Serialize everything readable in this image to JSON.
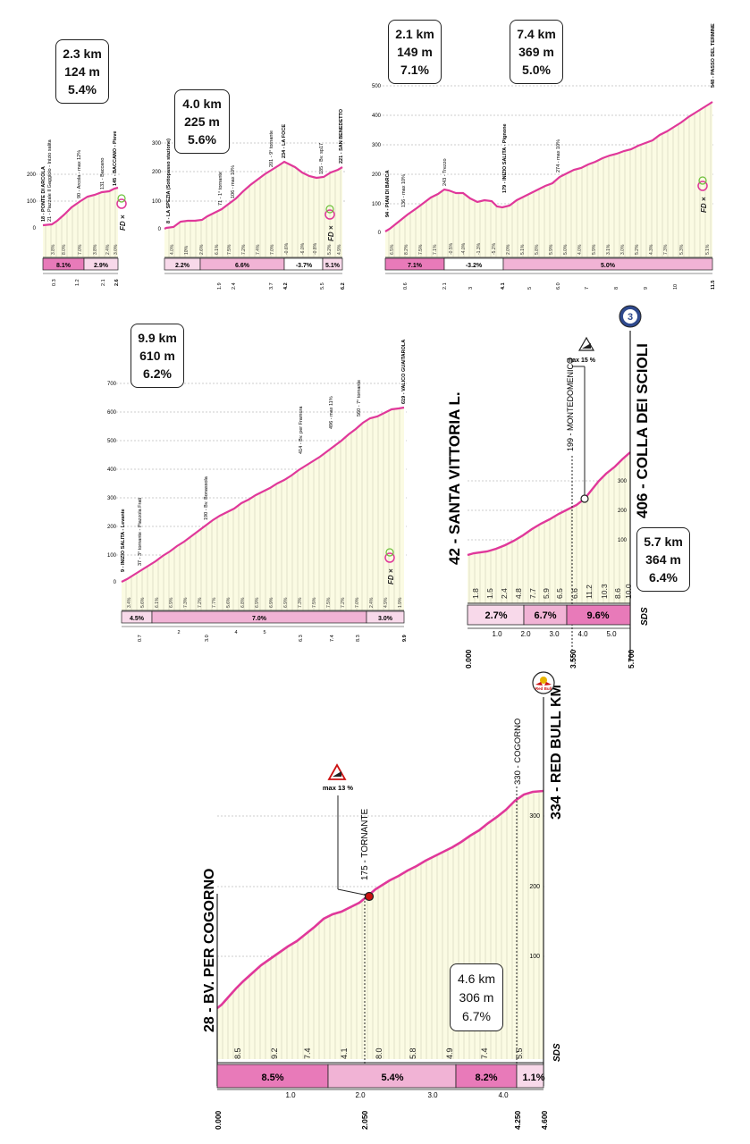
{
  "colors": {
    "line": "#e0389a",
    "fill": "#fbfbe3",
    "bar1": "#f8d9ea",
    "bar2": "#f1b3d5",
    "bar3": "#e87ab9",
    "red": "#cc1111"
  },
  "p1": {
    "summary": {
      "km": "2.3 km",
      "m": "124 m",
      "pct": "5.4%"
    },
    "yticks": [
      "100",
      "200"
    ],
    "yzero": "0",
    "xticks": [
      "0.3",
      "1.2",
      "2.1",
      "2.6"
    ],
    "landmarks": [
      "18 - PONTE DI ARCOLA",
      "21 - Piazzale Il Gaggiolo - Inizio salita",
      "90 - Arcola - max 12%",
      "131 - Baccano",
      "145 - BACCANO - Pieve"
    ],
    "seg_grades": [
      "3.8%",
      "8.0%",
      "7.0%",
      "3.8%",
      "2.4%",
      "3.0%"
    ],
    "band_labels": [
      "8.1%",
      "2.9%"
    ]
  },
  "p2": {
    "summary": {
      "km": "4.0 km",
      "m": "225 m",
      "pct": "5.6%"
    },
    "yticks": [
      "100",
      "200",
      "300"
    ],
    "yzero": "0",
    "xticks": [
      "1.9",
      "2.4",
      "3.7",
      "4.2",
      "5.5",
      "6.2"
    ],
    "landmarks": [
      "8 - LA SPEZIA (Sottopasso stazione)",
      "71 - 1° tornante",
      "106 - max 10%",
      "201 - 9° tornante",
      "234 - LA FOCE",
      "185 - Bv. sp17",
      "221 - SAN BENEDETTO"
    ],
    "seg_grades": [
      "4.0%",
      "10%",
      "2.6%",
      "6.1%",
      "7.5%",
      "7.2%",
      "7.4%",
      "7.0%",
      "-0.6%",
      "-6.0%",
      "-0.8%",
      "5.2%",
      "4.9%"
    ],
    "band_labels": [
      "2.2%",
      "6.6%",
      "-3.7%",
      "5.1%"
    ]
  },
  "p3": {
    "summary1": {
      "km": "2.1 km",
      "m": "149 m",
      "pct": "7.1%"
    },
    "summary2": {
      "km": "7.4 km",
      "m": "369 m",
      "pct": "5.0%"
    },
    "yticks": [
      "100",
      "200",
      "300",
      "400",
      "500",
      "600"
    ],
    "yzero": "0",
    "xticks": [
      "0.6",
      "2.1",
      "3",
      "4.1",
      "5",
      "6.0",
      "7",
      "8",
      "9",
      "10",
      "11.5"
    ],
    "landmarks": [
      "94 - PIAN DI BARCA",
      "136 - max 10%",
      "243 - Trezzo",
      "179 - INIZIO SALITA - Pignone",
      "274 - max 10%",
      "548 - PASSO DEL TERMINE"
    ],
    "seg_grades": [
      "6.5%",
      "8.2%",
      "7.5%",
      "7.1%",
      "-0.5%",
      "-4.0%",
      "-1.3%",
      "-5.2%",
      "2.0%",
      "5.1%",
      "5.8%",
      "5.9%",
      "5.0%",
      "4.0%",
      "5.9%",
      "3.1%",
      "3.0%",
      "5.2%",
      "4.3%",
      "7.3%",
      "5.3%",
      "5.1%"
    ],
    "band_labels": [
      "7.1%",
      "-3.2%",
      "5.0%"
    ]
  },
  "p4": {
    "summary": {
      "km": "9.9 km",
      "m": "610 m",
      "pct": "6.2%"
    },
    "yticks": [
      "100",
      "200",
      "300",
      "400",
      "500",
      "600",
      "700"
    ],
    "yzero": "0",
    "xticks": [
      "0.7",
      "2",
      "3.0",
      "4",
      "5",
      "6.3",
      "7.4",
      "8.3",
      "9.9"
    ],
    "landmarks": [
      "9 - INIZIO SALITA - Levante",
      "37 - 3° tornante - Piazzola Frati",
      "190 - Bv. Bonassola",
      "414 - Bv. per Framura",
      "496 - max 11%",
      "560 - 7° tornante",
      "619 - VALICO GUAITAROLA"
    ],
    "seg_grades": [
      "3.4%",
      "5.6%",
      "6.1%",
      "6.9%",
      "7.3%",
      "7.2%",
      "7.7%",
      "5.6%",
      "6.8%",
      "6.9%",
      "6.9%",
      "6.9%",
      "7.3%",
      "7.5%",
      "7.5%",
      "7.2%",
      "7.0%",
      "2.4%",
      "4.9%",
      "1.9%"
    ],
    "band_labels": [
      "4.5%",
      "7.0%",
      "3.0%"
    ]
  },
  "p5": {
    "start": "42 - SANTA VITTORIA L.",
    "finish": "406 - COLLA DEI SCIOLI",
    "badge": "3",
    "mid": "199 - MONTEDOMENICO",
    "max": "max 15 %",
    "summary": {
      "km": "5.7 km",
      "m": "364 m",
      "pct": "6.4%"
    },
    "yticks": [
      "100",
      "200",
      "300"
    ],
    "seg_grades": [
      "1.8",
      "1.5",
      "2.4",
      "4.8",
      "7.7",
      "5.9",
      "6.5",
      "6.6",
      "11.2",
      "10.3",
      "8.6",
      "10.0"
    ],
    "band_labels": [
      "2.7%",
      "6.7%",
      "9.6%"
    ],
    "xticks": [
      "1.0",
      "2.0",
      "3.0",
      "4.0",
      "5.0"
    ],
    "xstart": "0.000",
    "xmid": "3.550",
    "xend": "5.700",
    "logo": "SDS"
  },
  "p6": {
    "start": "28 - BV. PER COGORNO",
    "finish": "334 - RED BULL KM",
    "mid": "175 - TORNANTE",
    "mid2": "330 - COGORNO",
    "max": "max 13 %",
    "sponsor": "Red Bull",
    "summary": {
      "km": "4.6 km",
      "m": "306 m",
      "pct": "6.7%"
    },
    "yticks": [
      "100",
      "200",
      "300"
    ],
    "seg_grades": [
      "8.5",
      "9.2",
      "7.4",
      "4.1",
      "8.0",
      "5.8",
      "4.9",
      "7.4",
      "5.5"
    ],
    "band_labels": [
      "8.5%",
      "5.4%",
      "8.2%",
      "1.1%"
    ],
    "xticks": [
      "1.0",
      "2.0",
      "3.0",
      "4.0"
    ],
    "xstart": "0.000",
    "xmid": "2.050",
    "xmid2": "4.250",
    "xend": "4.600",
    "logo": "SDS"
  }
}
